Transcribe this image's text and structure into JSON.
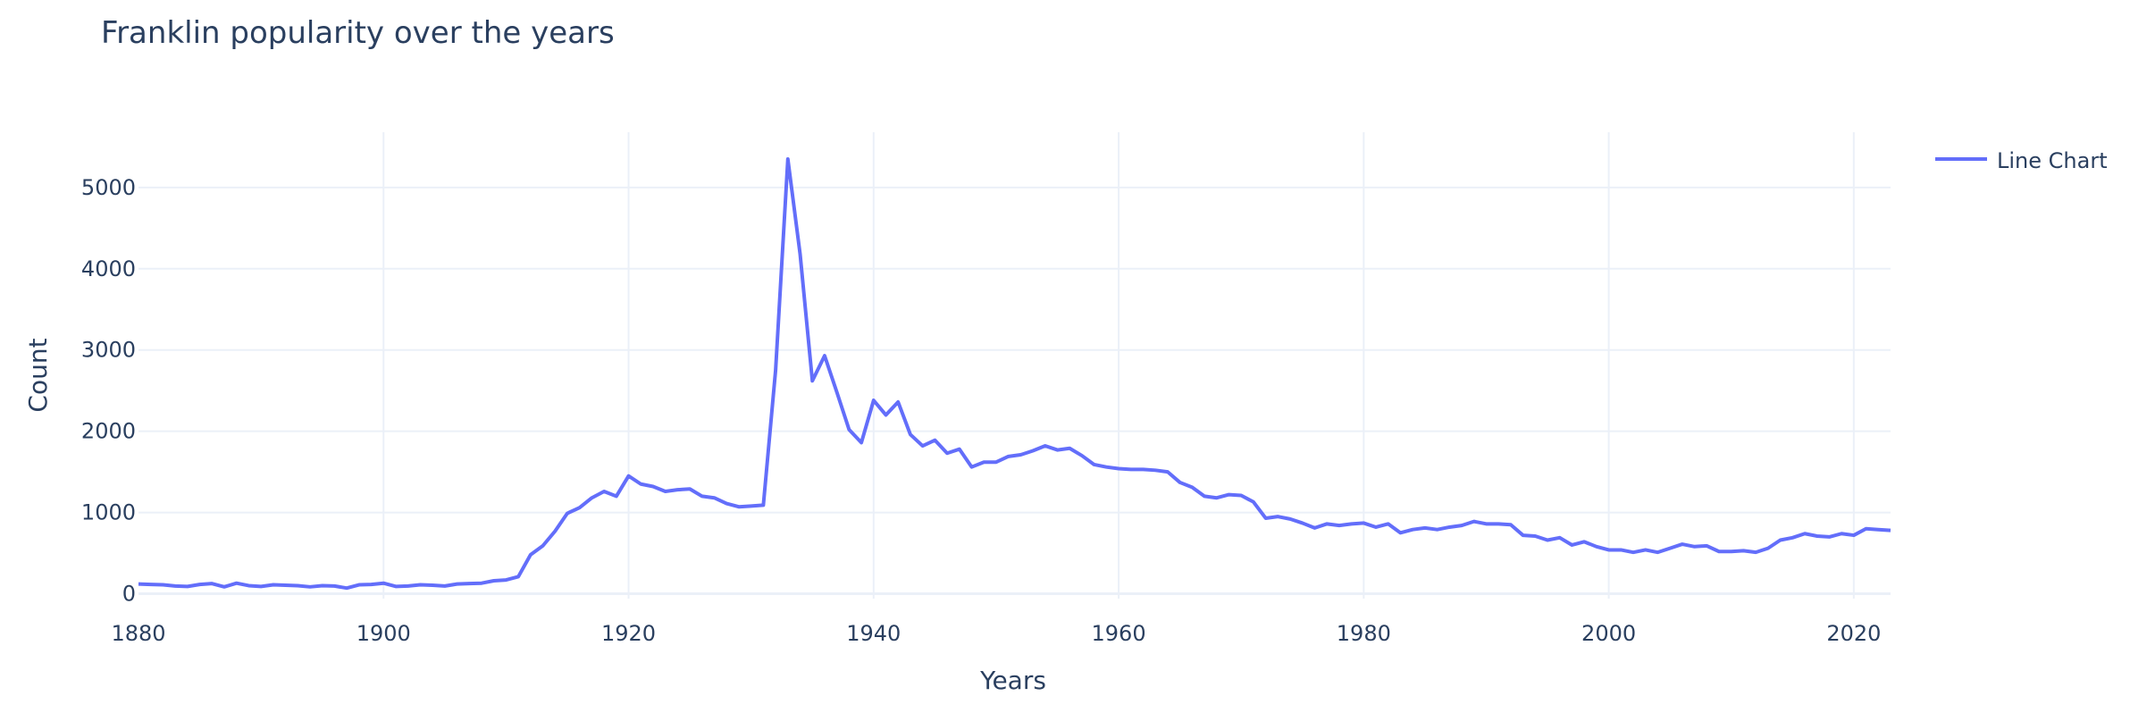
{
  "chart_data": {
    "type": "line",
    "title": "Franklin popularity over the years",
    "xlabel": "Years",
    "ylabel": "Count",
    "xlim": [
      1880,
      2023
    ],
    "ylim": [
      -60,
      5680
    ],
    "xticks": [
      1880,
      1900,
      1920,
      1940,
      1960,
      1980,
      2000,
      2020
    ],
    "yticks": [
      0,
      1000,
      2000,
      3000,
      4000,
      5000
    ],
    "grid": true,
    "legend_position": "top-right",
    "series": [
      {
        "name": "Line Chart",
        "color": "#636efa",
        "x": [
          1880,
          1881,
          1882,
          1883,
          1884,
          1885,
          1886,
          1887,
          1888,
          1889,
          1890,
          1891,
          1892,
          1893,
          1894,
          1895,
          1896,
          1897,
          1898,
          1899,
          1900,
          1901,
          1902,
          1903,
          1904,
          1905,
          1906,
          1907,
          1908,
          1909,
          1910,
          1911,
          1912,
          1913,
          1914,
          1915,
          1916,
          1917,
          1918,
          1919,
          1920,
          1921,
          1922,
          1923,
          1924,
          1925,
          1926,
          1927,
          1928,
          1929,
          1930,
          1931,
          1932,
          1933,
          1934,
          1935,
          1936,
          1937,
          1938,
          1939,
          1940,
          1941,
          1942,
          1943,
          1944,
          1945,
          1946,
          1947,
          1948,
          1949,
          1950,
          1951,
          1952,
          1953,
          1954,
          1955,
          1956,
          1957,
          1958,
          1959,
          1960,
          1961,
          1962,
          1963,
          1964,
          1965,
          1966,
          1967,
          1968,
          1969,
          1970,
          1971,
          1972,
          1973,
          1974,
          1975,
          1976,
          1977,
          1978,
          1979,
          1980,
          1981,
          1982,
          1983,
          1984,
          1985,
          1986,
          1987,
          1988,
          1989,
          1990,
          1991,
          1992,
          1993,
          1994,
          1995,
          1996,
          1997,
          1998,
          1999,
          2000,
          2001,
          2002,
          2003,
          2004,
          2005,
          2006,
          2007,
          2008,
          2009,
          2010,
          2011,
          2012,
          2013,
          2014,
          2015,
          2016,
          2017,
          2018,
          2019,
          2020,
          2021,
          2022,
          2023
        ],
        "values": [
          120,
          115,
          110,
          95,
          90,
          115,
          125,
          85,
          130,
          100,
          90,
          110,
          105,
          100,
          85,
          100,
          95,
          70,
          110,
          115,
          130,
          90,
          95,
          110,
          105,
          95,
          120,
          125,
          130,
          160,
          170,
          210,
          480,
          590,
          770,
          990,
          1060,
          1180,
          1260,
          1200,
          1450,
          1350,
          1320,
          1260,
          1280,
          1290,
          1200,
          1180,
          1110,
          1070,
          1080,
          1090,
          2750,
          5350,
          4180,
          2620,
          2930,
          2480,
          2020,
          1860,
          2380,
          2200,
          2360,
          1960,
          1820,
          1890,
          1730,
          1780,
          1560,
          1620,
          1620,
          1690,
          1710,
          1760,
          1820,
          1770,
          1790,
          1700,
          1590,
          1560,
          1540,
          1530,
          1530,
          1520,
          1500,
          1370,
          1310,
          1200,
          1180,
          1220,
          1210,
          1130,
          930,
          950,
          920,
          870,
          810,
          860,
          840,
          860,
          870,
          820,
          860,
          750,
          790,
          810,
          790,
          820,
          840,
          890,
          860,
          860,
          850,
          720,
          710,
          660,
          690,
          600,
          640,
          580,
          540,
          540,
          510,
          540,
          510,
          560,
          610,
          580,
          590,
          520,
          520,
          530,
          510,
          560,
          660,
          690,
          740,
          710,
          700,
          740,
          720,
          800,
          790,
          780
        ]
      }
    ]
  }
}
